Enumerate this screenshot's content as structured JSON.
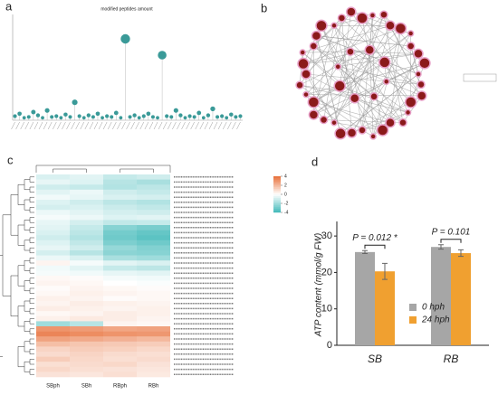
{
  "chart_data": [
    {
      "type": "lollipop",
      "label": "a",
      "title": "modified peptides amount",
      "color": "#3a9a98",
      "ylim": [
        0,
        130
      ],
      "values": [
        5,
        8,
        3,
        4,
        10,
        6,
        3,
        12,
        4,
        5,
        3,
        7,
        4,
        22,
        5,
        3,
        6,
        4,
        8,
        3,
        5,
        4,
        9,
        3,
        100,
        4,
        6,
        3,
        5,
        8,
        4,
        3,
        80,
        5,
        4,
        12,
        6,
        3,
        5,
        4,
        9,
        3,
        6,
        14,
        4,
        5,
        3,
        7,
        4,
        5
      ]
    },
    {
      "type": "network",
      "label": "b"
    },
    {
      "type": "heatmap",
      "label": "c",
      "columns": [
        "SBph",
        "SBh",
        "RBph",
        "RBh"
      ],
      "zlim": [
        -4,
        4
      ],
      "zticks": [
        4,
        2,
        0,
        -2,
        -4
      ],
      "low_color": "#3fb8b8",
      "mid_color": "#ffffff",
      "high_color": "#e8703a",
      "values": [
        [
          -0.8,
          -0.6,
          -1.2,
          -1.0
        ],
        [
          -0.5,
          -0.7,
          -1.5,
          -1.8
        ],
        [
          -1.0,
          -1.2,
          -1.6,
          -1.4
        ],
        [
          -0.6,
          -0.4,
          -1.0,
          -1.2
        ],
        [
          -0.3,
          -0.5,
          -0.8,
          -0.9
        ],
        [
          -0.7,
          -1.0,
          -1.4,
          -1.6
        ],
        [
          -0.9,
          -0.8,
          -1.1,
          -1.3
        ],
        [
          -0.4,
          -0.6,
          -0.9,
          -1.0
        ],
        [
          -0.2,
          -0.4,
          -0.7,
          -0.6
        ],
        [
          -0.5,
          -0.9,
          -1.3,
          -1.2
        ],
        [
          -0.6,
          -1.2,
          -2.5,
          -2.8
        ],
        [
          -0.8,
          -1.4,
          -2.9,
          -3.2
        ],
        [
          -1.0,
          -1.6,
          -3.0,
          -3.4
        ],
        [
          -0.7,
          -1.3,
          -2.7,
          -3.0
        ],
        [
          -0.5,
          -1.0,
          -2.2,
          -2.6
        ],
        [
          -0.9,
          -1.5,
          -2.4,
          -2.5
        ],
        [
          -0.4,
          -0.8,
          -1.8,
          -2.0
        ],
        [
          0.3,
          -0.2,
          -0.6,
          -0.8
        ],
        [
          -0.3,
          -0.6,
          -1.2,
          -1.4
        ],
        [
          -0.2,
          -0.3,
          -0.5,
          -0.6
        ],
        [
          0.2,
          0.1,
          -0.2,
          -0.3
        ],
        [
          0.3,
          0.2,
          0.0,
          -0.1
        ],
        [
          0.1,
          0.3,
          0.2,
          0.1
        ],
        [
          0.2,
          0.4,
          0.3,
          0.2
        ],
        [
          0.4,
          0.3,
          0.1,
          0.2
        ],
        [
          0.3,
          0.5,
          0.4,
          0.3
        ],
        [
          0.5,
          0.4,
          0.3,
          0.4
        ],
        [
          0.2,
          0.3,
          0.5,
          0.4
        ],
        [
          0.4,
          0.6,
          0.5,
          0.3
        ],
        [
          -2.0,
          -1.5,
          0.3,
          0.2
        ],
        [
          3.0,
          2.8,
          2.5,
          2.6
        ],
        [
          3.4,
          3.2,
          3.0,
          2.9
        ],
        [
          2.6,
          2.4,
          2.2,
          2.0
        ],
        [
          1.8,
          1.6,
          1.5,
          1.4
        ],
        [
          1.2,
          1.4,
          1.3,
          1.1
        ],
        [
          1.0,
          1.2,
          1.0,
          0.9
        ],
        [
          1.4,
          1.1,
          0.9,
          1.0
        ],
        [
          0.9,
          1.0,
          1.1,
          0.8
        ],
        [
          1.1,
          0.9,
          0.8,
          0.7
        ],
        [
          0.8,
          0.7,
          0.9,
          0.6
        ]
      ]
    },
    {
      "type": "bar",
      "label": "d",
      "categories": [
        "SB",
        "RB"
      ],
      "ylim": [
        0,
        34
      ],
      "yticks": [
        0,
        10,
        20,
        30
      ],
      "ylabel": "ATP content (mmol/g FW)",
      "series": [
        {
          "name": "0 hph",
          "color": "#a6a6a6",
          "values": [
            25.6,
            27.0
          ],
          "errors": [
            0.4,
            0.6
          ]
        },
        {
          "name": "24 hph",
          "color": "#f0a030",
          "values": [
            20.3,
            25.3
          ],
          "errors": [
            2.2,
            0.9
          ]
        }
      ],
      "annotations": [
        "P = 0.012 *",
        "P = 0.101"
      ]
    }
  ]
}
